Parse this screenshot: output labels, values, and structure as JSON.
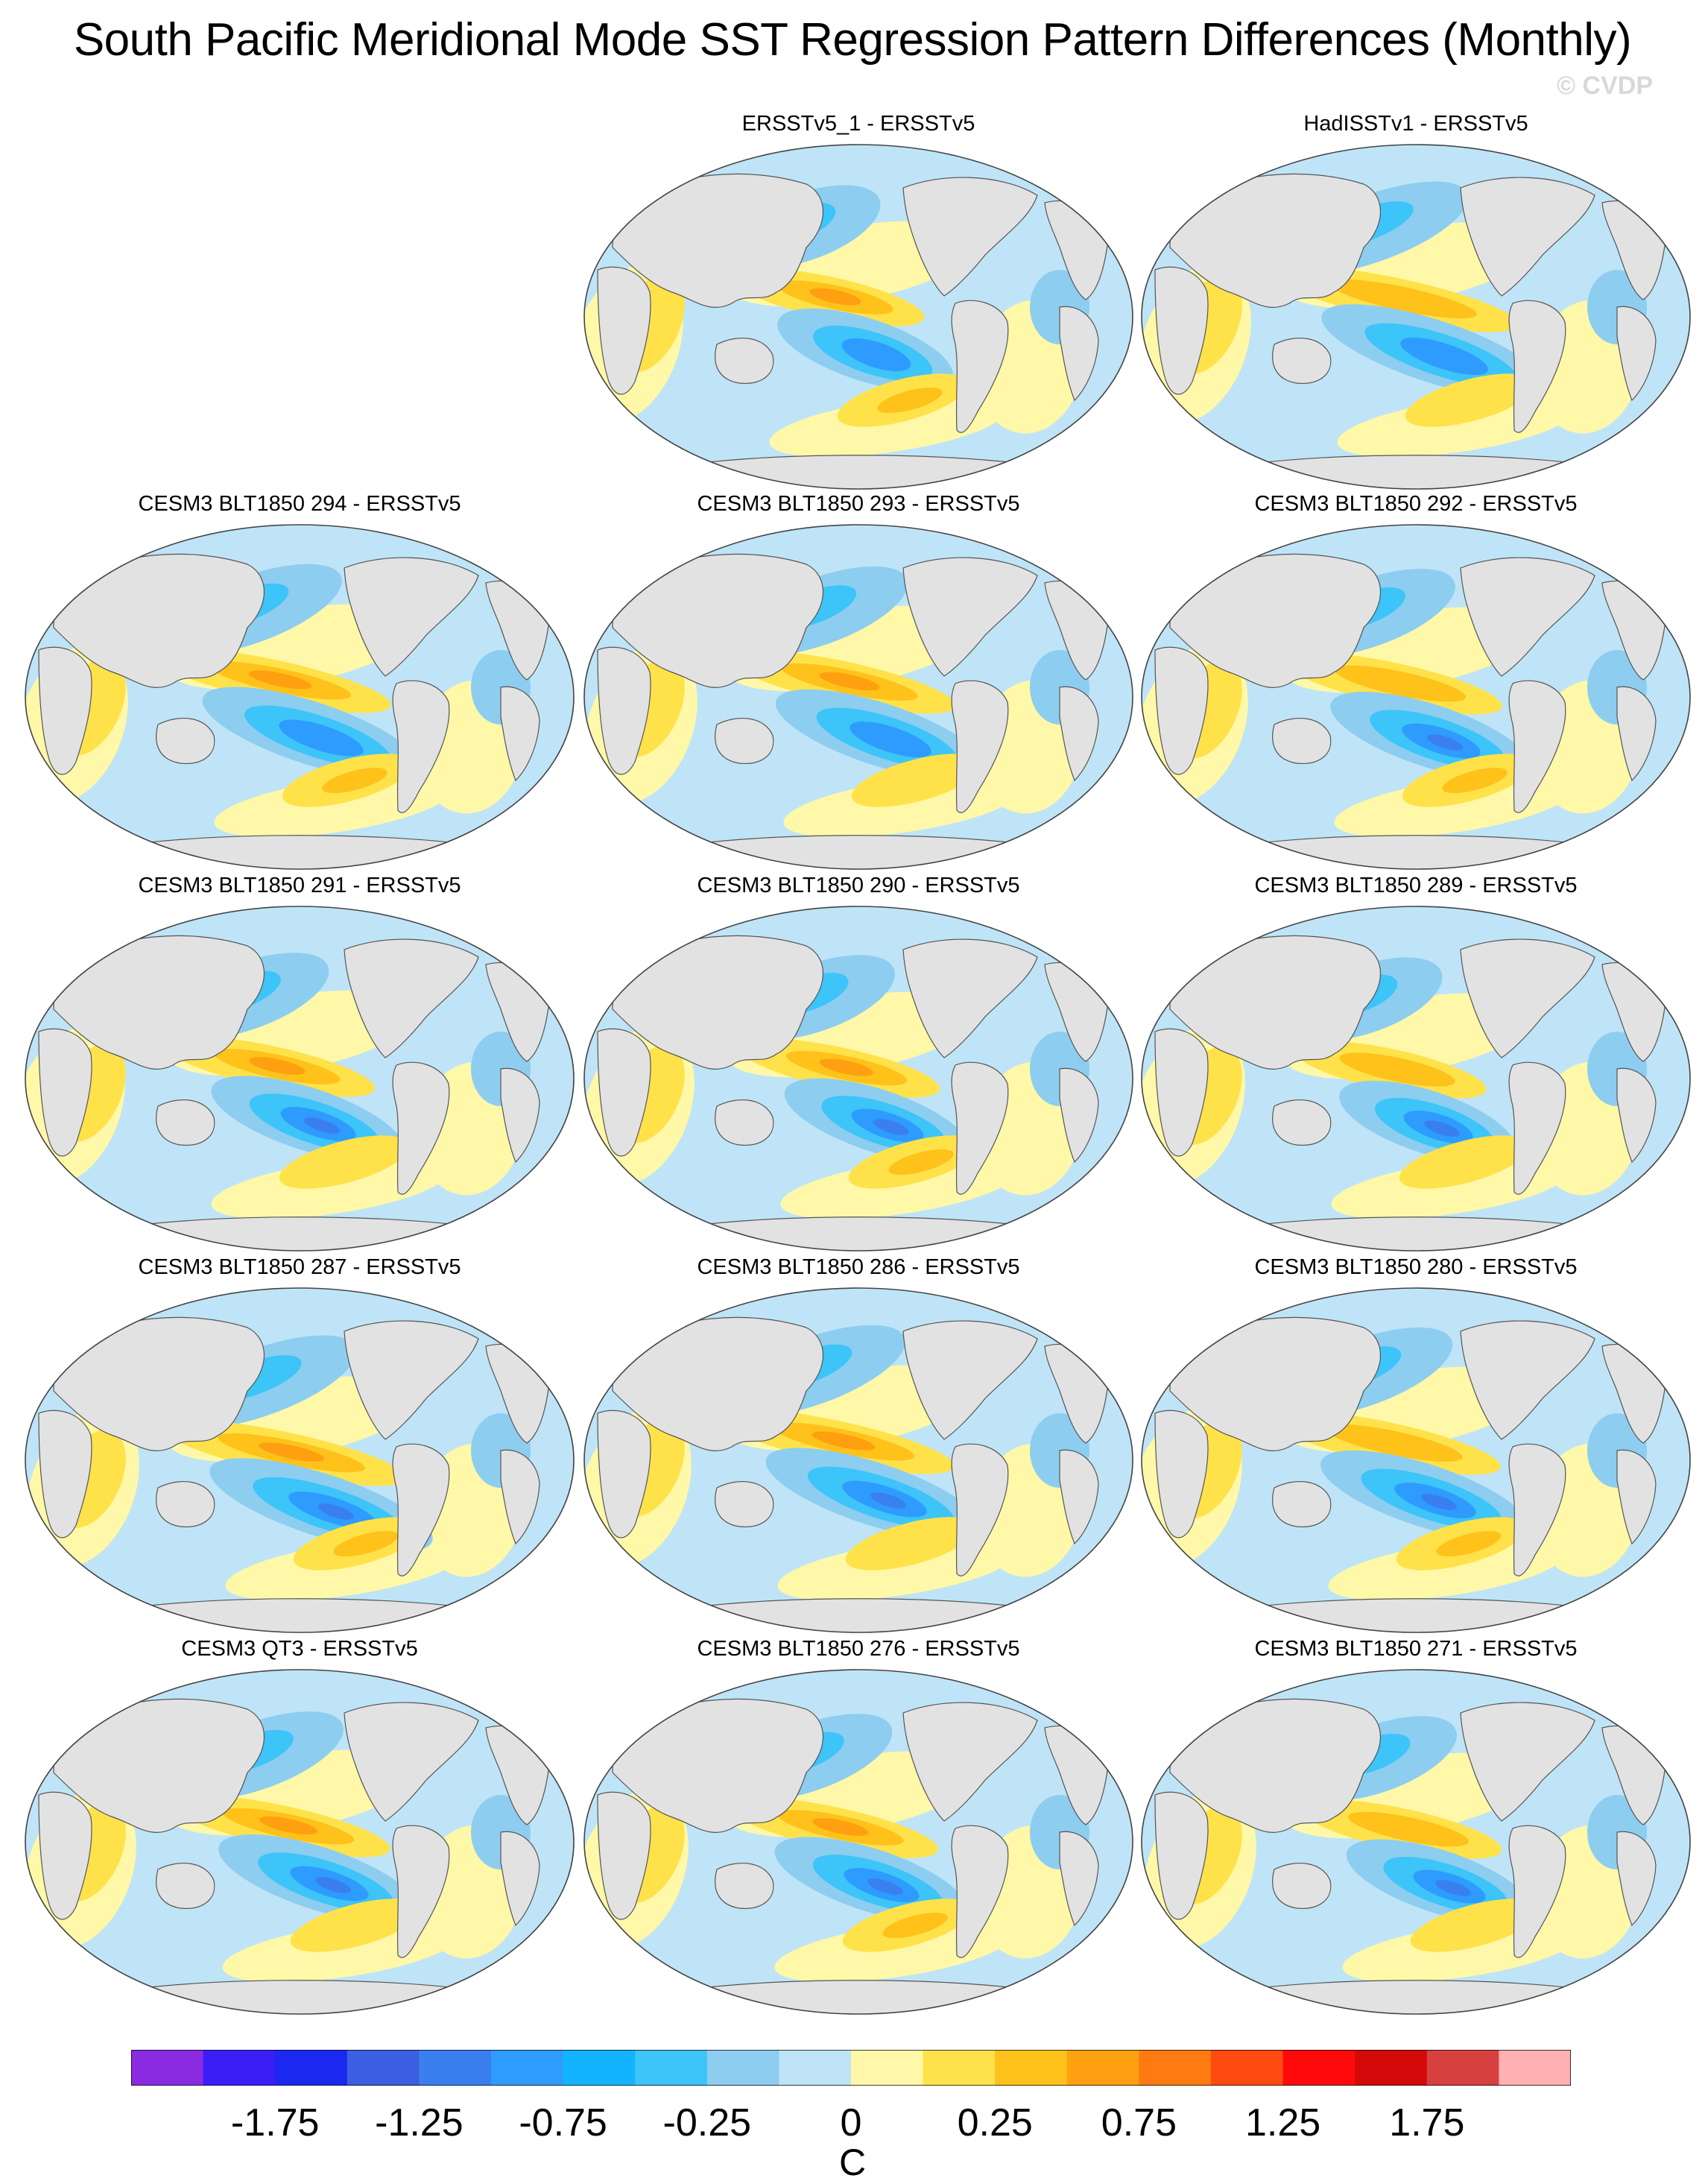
{
  "title": "South Pacific Meridional Mode SST Regression Pattern Differences (Monthly)",
  "watermark": "© CVDP",
  "panels": [
    {
      "title": "ERSSTv5_1 - ERSSTv5",
      "variant": 0
    },
    {
      "title": "HadISSTv1 - ERSSTv5",
      "variant": 1
    },
    {
      "title": "CESM3 BLT1850 294 - ERSSTv5",
      "variant": 2
    },
    {
      "title": "CESM3 BLT1850 293 - ERSSTv5",
      "variant": 3
    },
    {
      "title": "CESM3 BLT1850 292 - ERSSTv5",
      "variant": 4
    },
    {
      "title": "CESM3 BLT1850 291 - ERSSTv5",
      "variant": 5
    },
    {
      "title": "CESM3 BLT1850 290 - ERSSTv5",
      "variant": 6
    },
    {
      "title": "CESM3 BLT1850 289 - ERSSTv5",
      "variant": 7
    },
    {
      "title": "CESM3 BLT1850 287 - ERSSTv5",
      "variant": 8
    },
    {
      "title": "CESM3 BLT1850 286 - ERSSTv5",
      "variant": 9
    },
    {
      "title": "CESM3 BLT1850 280 - ERSSTv5",
      "variant": 10
    },
    {
      "title": "CESM3 QT3 - ERSSTv5",
      "variant": 11
    },
    {
      "title": "CESM3 BLT1850 276 - ERSSTv5",
      "variant": 12
    },
    {
      "title": "CESM3 BLT1850 271 - ERSSTv5",
      "variant": 13
    }
  ],
  "colorbar": {
    "colors": [
      "#8a2be2",
      "#3a1ef5",
      "#1a28f0",
      "#3b5fe0",
      "#3a7ff0",
      "#2e9bff",
      "#12b4ff",
      "#3dc4f8",
      "#8dcdf0",
      "#bfe4f7",
      "#fff8a8",
      "#ffe24a",
      "#ffc21a",
      "#ffa010",
      "#ff7a10",
      "#ff4a10",
      "#ff0a0a",
      "#d40a0a",
      "#d84040",
      "#ffb0b0"
    ],
    "labels": [
      "-1.75",
      "-1.25",
      "-0.75",
      "-0.25",
      "0",
      "0.25",
      "0.75",
      "1.25",
      "1.75"
    ],
    "units": "C"
  }
}
